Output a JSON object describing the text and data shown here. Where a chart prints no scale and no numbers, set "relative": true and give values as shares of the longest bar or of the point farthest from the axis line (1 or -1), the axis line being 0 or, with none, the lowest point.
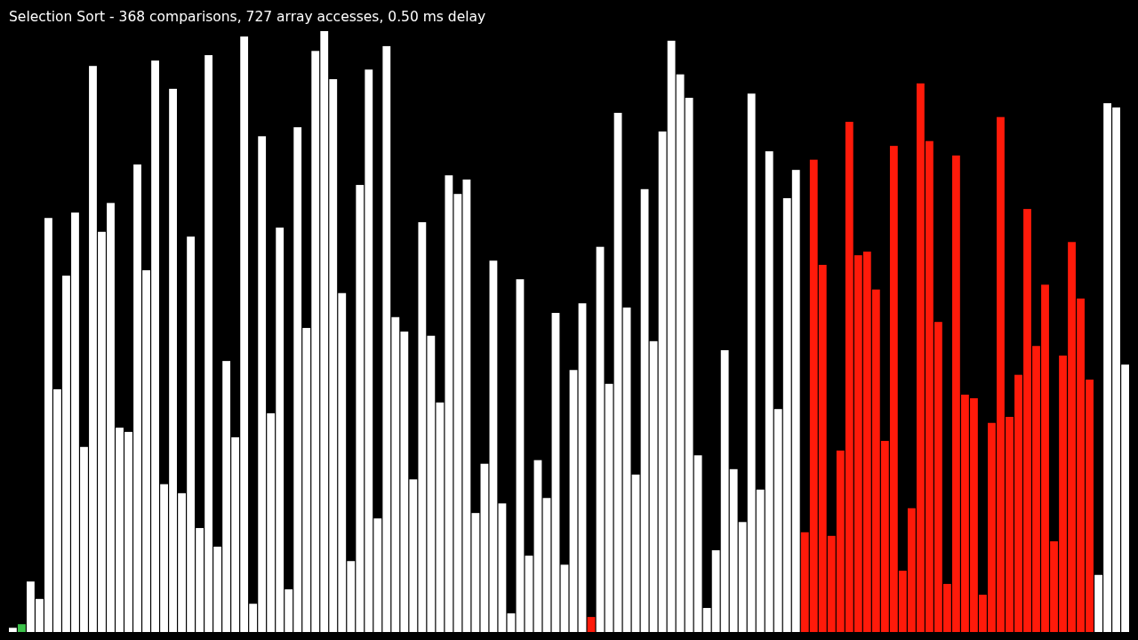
{
  "chart_data": {
    "type": "bar",
    "relative": true,
    "title": "Selection Sort - 368 comparisons, 727 array accesses, 0.50 ms delay",
    "categories": [
      null,
      null,
      null,
      null,
      null,
      null,
      null,
      null,
      null,
      null,
      null,
      null,
      null,
      null,
      null,
      null,
      null,
      null,
      null,
      null,
      null,
      null,
      null,
      null,
      null,
      null,
      null,
      null,
      null,
      null,
      null,
      null,
      null,
      null,
      null,
      null,
      null,
      null,
      null,
      null,
      null,
      null,
      null,
      null,
      null,
      null,
      null,
      null,
      null,
      null,
      null,
      null,
      null,
      null,
      null,
      null,
      null,
      null,
      null,
      null,
      null,
      null,
      null,
      null,
      null,
      null,
      null,
      null,
      null,
      null,
      null,
      null,
      null,
      null,
      null,
      null,
      null,
      null,
      null,
      null,
      null,
      null,
      null,
      null,
      null,
      null,
      null,
      null,
      null,
      null,
      null,
      null,
      null,
      null,
      null,
      null,
      null,
      null,
      null,
      null,
      null,
      null,
      null,
      null,
      null,
      null,
      null,
      null,
      null,
      null,
      null,
      null,
      null,
      null,
      null,
      null,
      null,
      null,
      null,
      null,
      null,
      null,
      null,
      null,
      null,
      null
    ],
    "values": [
      0.007,
      0.013,
      0.084,
      0.055,
      0.689,
      0.404,
      0.593,
      0.698,
      0.308,
      0.942,
      0.666,
      0.714,
      0.34,
      0.333,
      0.778,
      0.602,
      0.951,
      0.246,
      0.904,
      0.231,
      0.658,
      0.173,
      0.96,
      0.142,
      0.451,
      0.324,
      0.991,
      0.047,
      0.825,
      0.364,
      0.673,
      0.071,
      0.84,
      0.506,
      0.967,
      1,
      0.92,
      0.564,
      0.118,
      0.744,
      0.936,
      0.189,
      0.975,
      0.524,
      0.5,
      0.254,
      0.682,
      0.493,
      0.382,
      0.76,
      0.729,
      0.753,
      0.198,
      0.28,
      0.618,
      0.214,
      0.031,
      0.587,
      0.127,
      0.286,
      0.223,
      0.531,
      0.112,
      0.436,
      0.547,
      0.025,
      0.641,
      0.413,
      0.864,
      0.54,
      0.262,
      0.737,
      0.484,
      0.833,
      0.984,
      0.928,
      0.889,
      0.294,
      0.04,
      0.136,
      0.469,
      0.271,
      0.183,
      0.896,
      0.237,
      0.8,
      0.371,
      0.722,
      0.769,
      0.166,
      0.786,
      0.611,
      0.16,
      0.302,
      0.849,
      0.627,
      0.633,
      0.57,
      0.318,
      0.809,
      0.102,
      0.206,
      0.913,
      0.817,
      0.516,
      0.08,
      0.793,
      0.395,
      0.389,
      0.062,
      0.348,
      0.857,
      0.358,
      0.428,
      0.704,
      0.476,
      0.578,
      0.151,
      0.46,
      0.649,
      0.555,
      0.42,
      0.095,
      0.88,
      0.873,
      0.445
    ],
    "colors": [
      "#ffffff",
      "#3cc24a",
      "#ffffff",
      "#ffffff",
      "#ffffff",
      "#ffffff",
      "#ffffff",
      "#ffffff",
      "#ffffff",
      "#ffffff",
      "#ffffff",
      "#ffffff",
      "#ffffff",
      "#ffffff",
      "#ffffff",
      "#ffffff",
      "#ffffff",
      "#ffffff",
      "#ffffff",
      "#ffffff",
      "#ffffff",
      "#ffffff",
      "#ffffff",
      "#ffffff",
      "#ffffff",
      "#ffffff",
      "#ffffff",
      "#ffffff",
      "#ffffff",
      "#ffffff",
      "#ffffff",
      "#ffffff",
      "#ffffff",
      "#ffffff",
      "#ffffff",
      "#ffffff",
      "#ffffff",
      "#ffffff",
      "#ffffff",
      "#ffffff",
      "#ffffff",
      "#ffffff",
      "#ffffff",
      "#ffffff",
      "#ffffff",
      "#ffffff",
      "#ffffff",
      "#ffffff",
      "#ffffff",
      "#ffffff",
      "#ffffff",
      "#ffffff",
      "#ffffff",
      "#ffffff",
      "#ffffff",
      "#ffffff",
      "#ffffff",
      "#ffffff",
      "#ffffff",
      "#ffffff",
      "#ffffff",
      "#ffffff",
      "#ffffff",
      "#ffffff",
      "#ffffff",
      "#ff1a0a",
      "#ffffff",
      "#ffffff",
      "#ffffff",
      "#ffffff",
      "#ffffff",
      "#ffffff",
      "#ffffff",
      "#ffffff",
      "#ffffff",
      "#ffffff",
      "#ffffff",
      "#ffffff",
      "#ffffff",
      "#ffffff",
      "#ffffff",
      "#ffffff",
      "#ffffff",
      "#ffffff",
      "#ffffff",
      "#ffffff",
      "#ffffff",
      "#ffffff",
      "#ffffff",
      "#ff1a0a",
      "#ff1a0a",
      "#ff1a0a",
      "#ff1a0a",
      "#ff1a0a",
      "#ff1a0a",
      "#ff1a0a",
      "#ff1a0a",
      "#ff1a0a",
      "#ff1a0a",
      "#ff1a0a",
      "#ff1a0a",
      "#ff1a0a",
      "#ff1a0a",
      "#ff1a0a",
      "#ff1a0a",
      "#ff1a0a",
      "#ff1a0a",
      "#ff1a0a",
      "#ff1a0a",
      "#ff1a0a",
      "#ff1a0a",
      "#ff1a0a",
      "#ff1a0a",
      "#ff1a0a",
      "#ff1a0a",
      "#ff1a0a",
      "#ff1a0a",
      "#ff1a0a",
      "#ff1a0a",
      "#ff1a0a",
      "#ff1a0a",
      "#ff1a0a",
      "#ffffff",
      "#ffffff",
      "#ffffff",
      "#ffffff"
    ]
  }
}
